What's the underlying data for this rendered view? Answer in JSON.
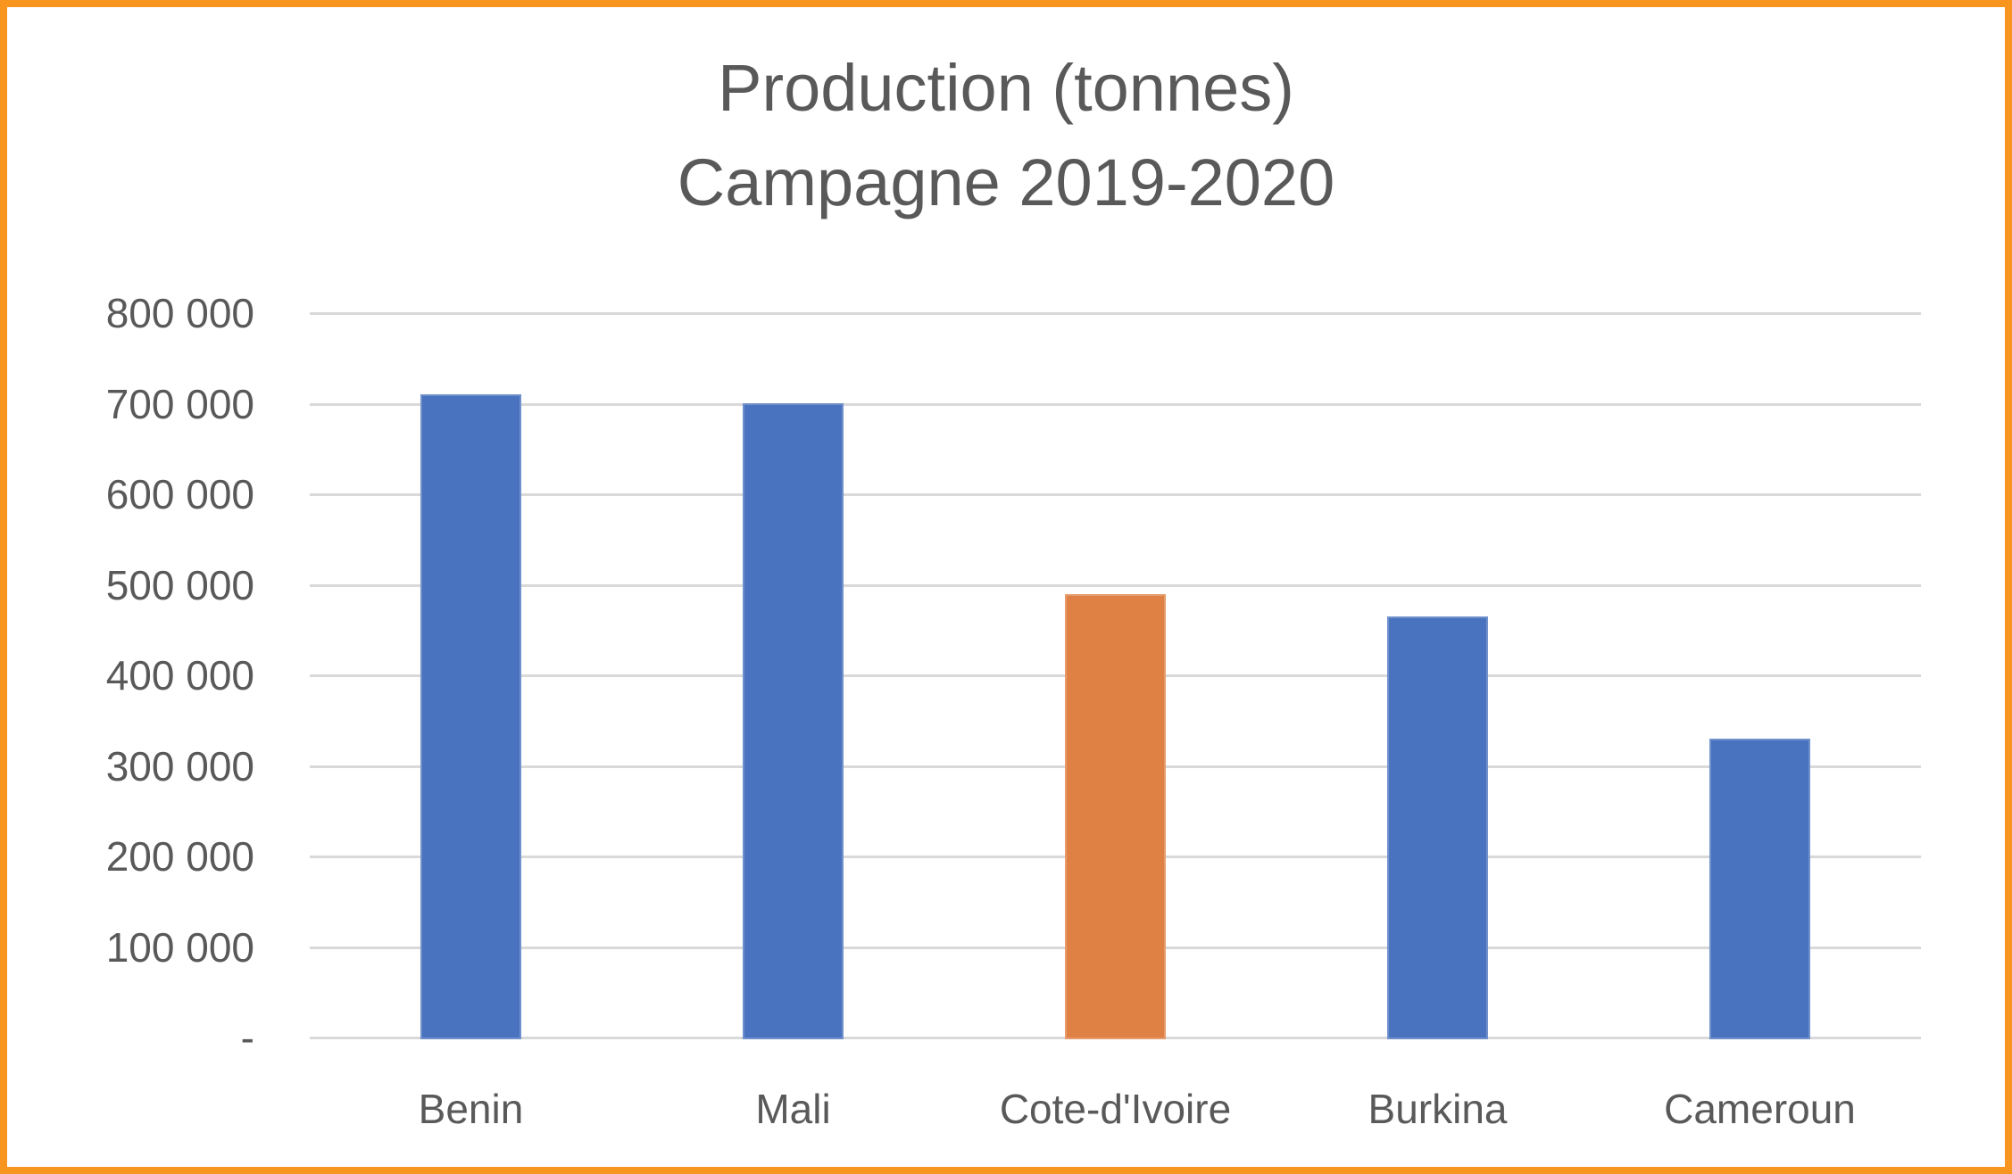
{
  "frame": {
    "border_color": "#F8951F"
  },
  "title": {
    "line1": "Production (tonnes)",
    "line2": "Campagne 2019-2020"
  },
  "chart_data": {
    "type": "bar",
    "title": "Production (tonnes) Campagne 2019-2020",
    "categories": [
      "Benin",
      "Mali",
      "Cote-d'Ivoire",
      "Burkina",
      "Cameroun"
    ],
    "values": [
      710000,
      700000,
      490000,
      465000,
      330000
    ],
    "bar_colors": [
      "#4973BE",
      "#4973BE",
      "#DF8144",
      "#4973BE",
      "#4973BE"
    ],
    "default_bar_color": "#4973BE",
    "highlight_bar_color": "#DF8144",
    "highlight_index": 2,
    "xlabel": "",
    "ylabel": "",
    "ylim": [
      0,
      800000
    ],
    "ytick_step": 100000,
    "ytick_labels": [
      "-",
      "100 000",
      "200 000",
      "300 000",
      "400 000",
      "500 000",
      "600 000",
      "700 000",
      "800 000"
    ],
    "grid": true,
    "gridline_color": "#D9D9D9",
    "text_color": "#595959",
    "legend_position": "none"
  }
}
